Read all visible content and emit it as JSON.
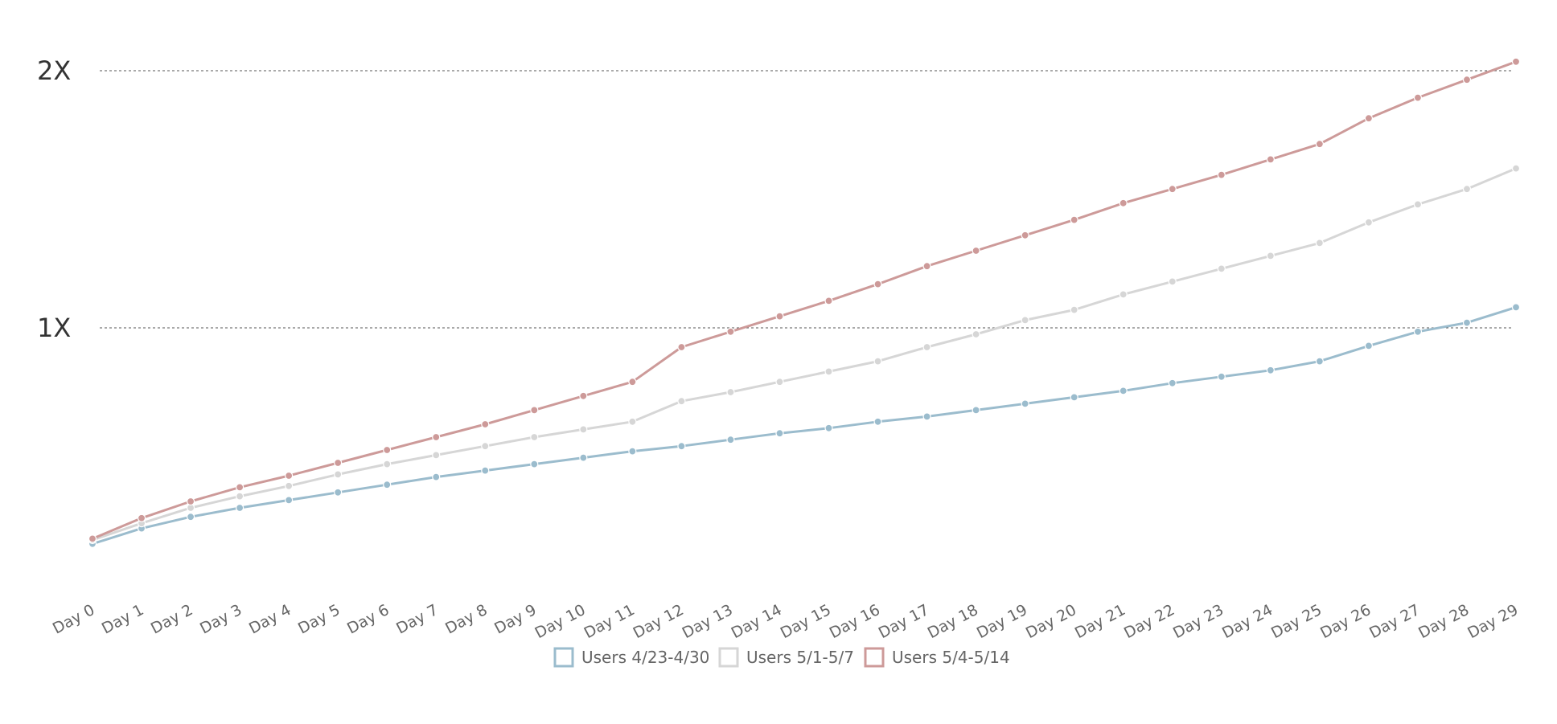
{
  "chart_data": {
    "type": "line",
    "title": "",
    "xlabel": "",
    "ylabel": "",
    "categories": [
      "Day 0",
      "Day 1",
      "Day 2",
      "Day 3",
      "Day 4",
      "Day 5",
      "Day 6",
      "Day 7",
      "Day 8",
      "Day 9",
      "Day 10",
      "Day 11",
      "Day 12",
      "Day 13",
      "Day 14",
      "Day 15",
      "Day 16",
      "Day 17",
      "Day 18",
      "Day 19",
      "Day 20",
      "Day 21",
      "Day 22",
      "Day 23",
      "Day 24",
      "Day 25",
      "Day 26",
      "Day 27",
      "Day 28",
      "Day 29"
    ],
    "y_ticks": [
      {
        "value": 1,
        "label": "1X"
      },
      {
        "value": 2,
        "label": "2X"
      }
    ],
    "ylim": [
      -0.05,
      2.03
    ],
    "grid": "horizontal dashed at 1X and 2X",
    "legend_position": "bottom-center",
    "series": [
      {
        "name": "Users 4/23-4/30",
        "color": "#9bbccd",
        "values": [
          0.16,
          0.22,
          0.265,
          0.3,
          0.33,
          0.36,
          0.39,
          0.42,
          0.445,
          0.47,
          0.495,
          0.52,
          0.54,
          0.565,
          0.59,
          0.61,
          0.635,
          0.655,
          0.68,
          0.705,
          0.73,
          0.755,
          0.785,
          0.81,
          0.835,
          0.87,
          0.93,
          0.985,
          1.02,
          1.08
        ]
      },
      {
        "name": "Users 5/1-5/7",
        "color": "#d6d6d6",
        "values": [
          0.175,
          0.24,
          0.3,
          0.345,
          0.385,
          0.43,
          0.47,
          0.505,
          0.54,
          0.575,
          0.605,
          0.635,
          0.715,
          0.75,
          0.79,
          0.83,
          0.87,
          0.925,
          0.975,
          1.03,
          1.07,
          1.13,
          1.18,
          1.23,
          1.28,
          1.33,
          1.41,
          1.48,
          1.54,
          1.62
        ]
      },
      {
        "name": "Users 5/4-5/14",
        "color": "#cd9a99",
        "values": [
          0.18,
          0.26,
          0.325,
          0.38,
          0.425,
          0.475,
          0.525,
          0.575,
          0.625,
          0.68,
          0.735,
          0.79,
          0.925,
          0.985,
          1.045,
          1.105,
          1.17,
          1.24,
          1.3,
          1.36,
          1.42,
          1.485,
          1.54,
          1.595,
          1.655,
          1.715,
          1.815,
          1.895,
          1.965,
          2.035
        ]
      }
    ]
  }
}
